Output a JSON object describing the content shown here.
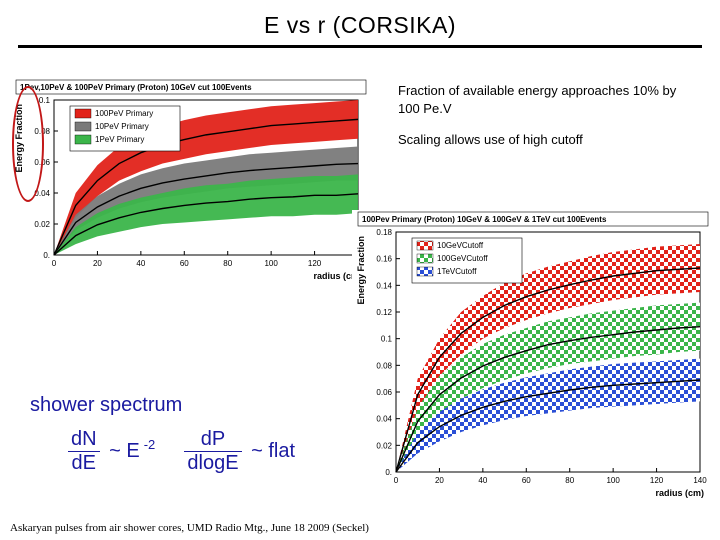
{
  "page_title": "E vs r  (CORSIKA)",
  "notes": {
    "line1": "Fraction of available energy approaches 10% by 100 Pe.V",
    "line2": "Scaling allows use of high cutoff"
  },
  "footer": "Askaryan pulses from air shower cores, UMD Radio Mtg., June 18 2009 (Seckel)",
  "handwriting": {
    "heading": "shower spectrum",
    "frac1_top": "dN",
    "frac1_bot": "dE",
    "rel1": "~  E",
    "exp1": "-2",
    "frac2_top": "dP",
    "frac2_bot": "dlogE",
    "rel2": "~ flat"
  },
  "chart_left": {
    "title": "1Pev,10PeV & 100PeV Primary (Proton) 10GeV cut 100Events",
    "ylabel": "Energy Fraction",
    "xlabel": "radius (cm)",
    "xlim": [
      0,
      140
    ],
    "xtick_step": 20,
    "ylim": [
      0,
      0.1
    ],
    "ytick_step": 0.02,
    "legend": [
      {
        "label": "100PeV Primary",
        "color": "#e2231a"
      },
      {
        "label": "10PeV Primary",
        "color": "#7a7a7a"
      },
      {
        "label": "1PeV Primary",
        "color": "#3bb54a"
      }
    ],
    "bg": "#ffffff",
    "band_alpha": 1.0,
    "title_fontsize": 8,
    "axis_fontsize": 8,
    "series": {
      "x": [
        0,
        10,
        20,
        30,
        40,
        50,
        60,
        70,
        80,
        90,
        100,
        110,
        120,
        130,
        140
      ],
      "red_hi": [
        0.0,
        0.04,
        0.058,
        0.07,
        0.078,
        0.083,
        0.087,
        0.09,
        0.092,
        0.094,
        0.096,
        0.097,
        0.098,
        0.099,
        0.1
      ],
      "red_lo": [
        0.0,
        0.024,
        0.038,
        0.048,
        0.054,
        0.059,
        0.062,
        0.065,
        0.067,
        0.069,
        0.071,
        0.072,
        0.073,
        0.074,
        0.075
      ],
      "gray_hi": [
        0.0,
        0.026,
        0.038,
        0.046,
        0.052,
        0.056,
        0.059,
        0.061,
        0.063,
        0.065,
        0.066,
        0.067,
        0.068,
        0.069,
        0.07
      ],
      "gray_lo": [
        0.0,
        0.016,
        0.024,
        0.03,
        0.034,
        0.037,
        0.039,
        0.041,
        0.043,
        0.044,
        0.045,
        0.046,
        0.047,
        0.048,
        0.048
      ],
      "green_hi": [
        0.0,
        0.018,
        0.027,
        0.033,
        0.037,
        0.04,
        0.043,
        0.045,
        0.046,
        0.048,
        0.049,
        0.05,
        0.051,
        0.051,
        0.052
      ],
      "green_lo": [
        0.0,
        0.007,
        0.012,
        0.015,
        0.018,
        0.02,
        0.021,
        0.022,
        0.023,
        0.024,
        0.025,
        0.025,
        0.026,
        0.026,
        0.027
      ]
    }
  },
  "chart_right": {
    "title": "100Pev Primary (Proton) 10GeV & 100GeV & 1TeV cut 100Events",
    "ylabel": "Energy Fraction",
    "xlabel": "radius (cm)",
    "xlim": [
      0,
      140
    ],
    "xtick_step": 20,
    "ylim": [
      0,
      0.18
    ],
    "ytick_step": 0.02,
    "legend": [
      {
        "label": "10GeVCutoff",
        "color": "#e2231a"
      },
      {
        "label": "100GeVCutoff",
        "color": "#3bb54a"
      },
      {
        "label": "1TeVCutoff",
        "color": "#2b4fd6"
      }
    ],
    "bg": "#ffffff",
    "pattern": "checker",
    "title_fontsize": 8,
    "axis_fontsize": 8,
    "series": {
      "x": [
        0,
        10,
        20,
        30,
        40,
        50,
        60,
        70,
        80,
        90,
        100,
        110,
        120,
        130,
        140
      ],
      "red_hi": [
        0.0,
        0.07,
        0.1,
        0.12,
        0.132,
        0.142,
        0.149,
        0.154,
        0.158,
        0.162,
        0.165,
        0.167,
        0.169,
        0.17,
        0.171
      ],
      "red_lo": [
        0.0,
        0.046,
        0.072,
        0.088,
        0.1,
        0.108,
        0.114,
        0.119,
        0.123,
        0.126,
        0.129,
        0.131,
        0.133,
        0.134,
        0.135
      ],
      "green_hi": [
        0.0,
        0.048,
        0.072,
        0.086,
        0.096,
        0.103,
        0.108,
        0.113,
        0.116,
        0.119,
        0.121,
        0.123,
        0.125,
        0.126,
        0.127
      ],
      "green_lo": [
        0.0,
        0.028,
        0.044,
        0.055,
        0.063,
        0.069,
        0.074,
        0.078,
        0.081,
        0.083,
        0.085,
        0.087,
        0.088,
        0.09,
        0.091
      ],
      "blue_hi": [
        0.0,
        0.03,
        0.045,
        0.055,
        0.062,
        0.067,
        0.071,
        0.074,
        0.077,
        0.079,
        0.081,
        0.082,
        0.083,
        0.084,
        0.085
      ],
      "blue_lo": [
        0.0,
        0.014,
        0.023,
        0.03,
        0.035,
        0.039,
        0.042,
        0.044,
        0.046,
        0.048,
        0.049,
        0.05,
        0.051,
        0.052,
        0.053
      ]
    }
  }
}
